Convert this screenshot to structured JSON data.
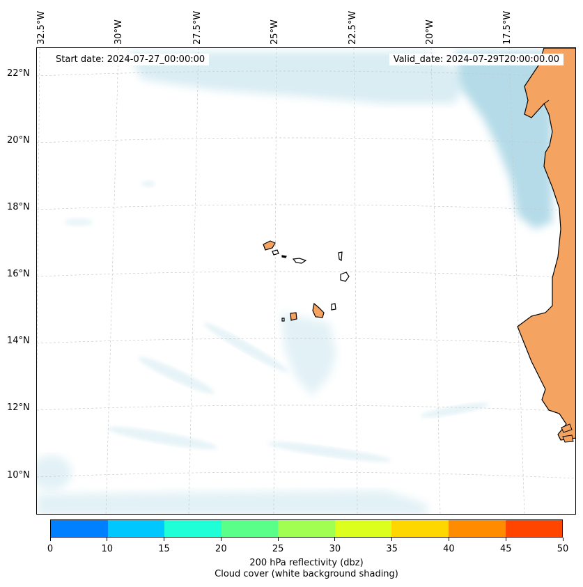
{
  "map": {
    "start_date": "Start date: 2024-07-27_00:00:00",
    "valid_date": "Valid_date: 2024-07-29T20:00:00.00",
    "lon_labels": [
      "32.5°W",
      "30°W",
      "27.5°W",
      "25°W",
      "22.5°W",
      "20°W",
      "17.5°W"
    ],
    "lat_labels": [
      "22°N",
      "20°N",
      "18°N",
      "16°N",
      "14°N",
      "12°N",
      "10°N"
    ],
    "colors": {
      "land": "#f4a460",
      "cloud": "#add8e6",
      "grid": "#c8c8c8",
      "coast": "#000000"
    }
  },
  "colorbar": {
    "ticks": [
      "0",
      "10",
      "15",
      "20",
      "25",
      "30",
      "35",
      "40",
      "45",
      "50"
    ],
    "colors": [
      "#007fff",
      "#00c8ff",
      "#1effd8",
      "#5aff8a",
      "#a0ff50",
      "#dcff1e",
      "#ffd700",
      "#ff8c00",
      "#ff4500"
    ],
    "label_line1": "200 hPa reflectivity (dbz)",
    "label_line2": "Cloud cover (white background shading)"
  }
}
